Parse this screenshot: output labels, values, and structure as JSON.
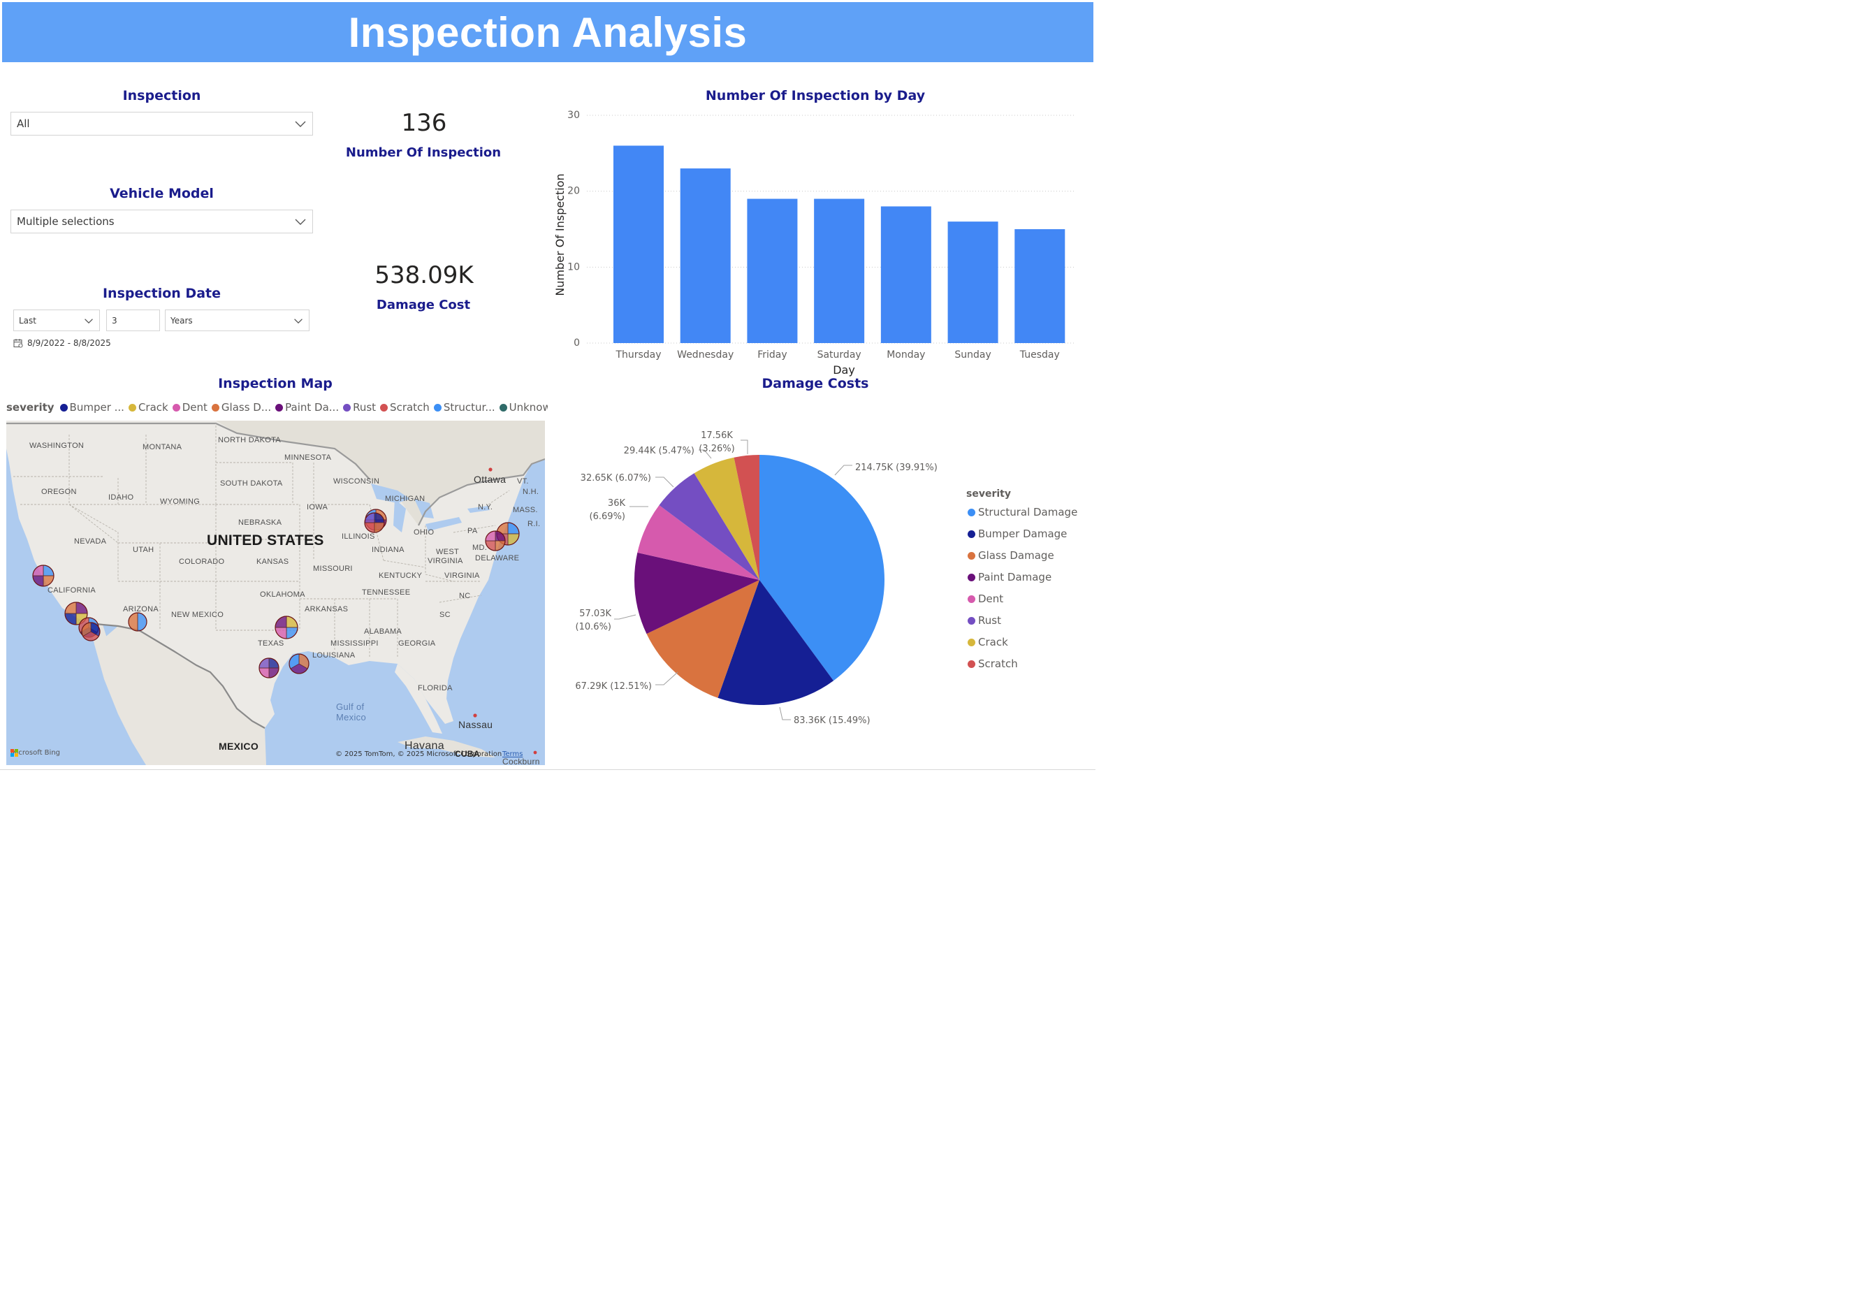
{
  "header": {
    "title": "Inspection Analysis",
    "bg_color": "#5fa1f7"
  },
  "filters": {
    "inspection": {
      "title": "Inspection",
      "value": "All"
    },
    "vehicle_model": {
      "title": "Vehicle Model",
      "value": "Multiple selections"
    },
    "inspection_date": {
      "title": "Inspection Date",
      "mode": "Last",
      "count": "3",
      "unit": "Years",
      "range": "8/9/2022 - 8/8/2025"
    }
  },
  "kpis": [
    {
      "value": "136",
      "label": "Number Of Inspection"
    },
    {
      "value": "538.09K",
      "label": "Damage Cost"
    }
  ],
  "bar_chart": {
    "title": "Number Of Inspection by Day",
    "xlabel": "Day",
    "ylabel": "Number Of Inspection",
    "bar_color": "#4287f5"
  },
  "map": {
    "title": "Inspection Map",
    "legend_title": "severity",
    "legend": [
      {
        "label": "Bumper ...",
        "color": "#151f94"
      },
      {
        "label": "Crack",
        "color": "#d6b73b"
      },
      {
        "label": "Dent",
        "color": "#d65aad"
      },
      {
        "label": "Glass D...",
        "color": "#d9733f"
      },
      {
        "label": "Paint Da...",
        "color": "#6a107a"
      },
      {
        "label": "Rust",
        "color": "#744ec2"
      },
      {
        "label": "Scratch",
        "color": "#d25152"
      },
      {
        "label": "Structur...",
        "color": "#3c8ff5"
      },
      {
        "label": "Unknow",
        "color": "#2f6b69"
      }
    ],
    "labels": {
      "washington": "WASHINGTON",
      "montana": "MONTANA",
      "north_dakota": "NORTH DAKOTA",
      "minnesota": "MINNESOTA",
      "oregon": "OREGON",
      "idaho": "IDAHO",
      "south_dakota": "SOUTH DAKOTA",
      "wisconsin": "WISCONSIN",
      "michigan": "MICHIGAN",
      "ottawa": "Ottawa",
      "vt": "VT.",
      "nh": "N.H.",
      "ny": "N.Y.",
      "mass": "MASS.",
      "wyoming": "WYOMING",
      "iowa": "IOWA",
      "nebraska": "NEBRASKA",
      "pa": "PA",
      "ri": "R.I.",
      "nevada": "NEVADA",
      "united_states": "UNITED STATES",
      "illinois": "ILLINOIS",
      "ohio": "OHIO",
      "utah": "UTAH",
      "indiana": "INDIANA",
      "md": "MD.",
      "west_virginia_1": "WEST",
      "west_virginia_2": "VIRGINIA",
      "delaware": "DELAWARE",
      "colorado": "COLORADO",
      "kansas": "KANSAS",
      "missouri": "MISSOURI",
      "kentucky": "KENTUCKY",
      "virginia": "VIRGINIA",
      "california": "CALIFORNIA",
      "oklahoma": "OKLAHOMA",
      "tennessee": "TENNESSEE",
      "nc": "NC",
      "arizona": "ARIZONA",
      "new_mexico": "NEW MEXICO",
      "arkansas": "ARKANSAS",
      "sc": "SC",
      "texas": "TEXAS",
      "alabama": "ALABAMA",
      "mississippi": "MISSISSIPPI",
      "georgia": "GEORGIA",
      "louisiana": "LOUISIANA",
      "florida": "FLORIDA",
      "gulf_1": "Gulf of",
      "gulf_2": "Mexico",
      "nassau": "Nassau",
      "mexico": "MEXICO",
      "havana": "Havana",
      "cuba": "CUBA",
      "cockburn": "Cockburn"
    },
    "footer": {
      "bing": "Microsoft Bing",
      "attribution": "© 2025 TomTom, © 2025 Microsoft Corporation",
      "terms": "Terms"
    }
  },
  "pie_chart": {
    "title": "Damage Costs",
    "legend_title": "severity",
    "data_labels": [
      "214.75K (39.91%)",
      "83.36K (15.49%)",
      "67.29K (12.51%)",
      "57.03K",
      "(10.6%)",
      "36K",
      "(6.69%)",
      "32.65K (6.07%)",
      "29.44K (5.47%)",
      "17.56K",
      "(3.26%)"
    ]
  },
  "chart_data": [
    {
      "type": "bar",
      "title": "Number Of Inspection by Day",
      "xlabel": "Day",
      "ylabel": "Number Of Inspection",
      "categories": [
        "Thursday",
        "Wednesday",
        "Friday",
        "Saturday",
        "Monday",
        "Sunday",
        "Tuesday"
      ],
      "values": [
        26,
        23,
        19,
        19,
        18,
        16,
        15
      ],
      "ylim": [
        0,
        30
      ],
      "yticks": [
        0,
        10,
        20,
        30
      ],
      "grid": true
    },
    {
      "type": "pie",
      "title": "Damage Costs",
      "legend_title": "severity",
      "legend_position": "right",
      "slices": [
        {
          "name": "Structural Damage",
          "value": 214.75,
          "percent": 39.91,
          "color": "#3c8ff5"
        },
        {
          "name": "Bumper Damage",
          "value": 83.36,
          "percent": 15.49,
          "color": "#151f94"
        },
        {
          "name": "Glass Damage",
          "value": 67.29,
          "percent": 12.51,
          "color": "#d9733f"
        },
        {
          "name": "Paint Damage",
          "value": 57.03,
          "percent": 10.6,
          "color": "#6a107a"
        },
        {
          "name": "Dent",
          "value": 36.0,
          "percent": 6.69,
          "color": "#d65aad"
        },
        {
          "name": "Rust",
          "value": 32.65,
          "percent": 6.07,
          "color": "#744ec2"
        },
        {
          "name": "Crack",
          "value": 29.44,
          "percent": 5.47,
          "color": "#d6b73b"
        },
        {
          "name": "Scratch",
          "value": 17.56,
          "percent": 3.26,
          "color": "#d25152"
        }
      ]
    }
  ]
}
